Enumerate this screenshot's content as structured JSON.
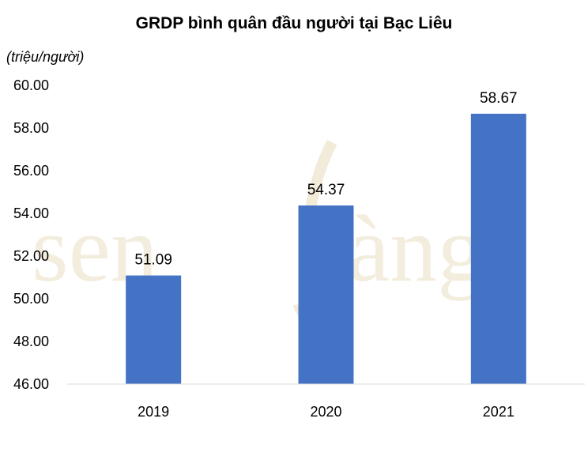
{
  "chart_data": {
    "type": "bar",
    "title": "GRDP bình quân đầu người tại Bạc Liêu",
    "unit_label": "(triệu/người)",
    "categories": [
      "2019",
      "2020",
      "2021"
    ],
    "values": [
      51.09,
      54.37,
      58.67
    ],
    "value_labels": [
      "51.09",
      "54.37",
      "58.67"
    ],
    "ylim": [
      46.0,
      60.0
    ],
    "yticks": [
      "46.00",
      "48.00",
      "50.00",
      "52.00",
      "54.00",
      "56.00",
      "58.00",
      "60.00"
    ],
    "bar_color": "#4472c4",
    "grid": false,
    "watermark": "senvàng"
  }
}
